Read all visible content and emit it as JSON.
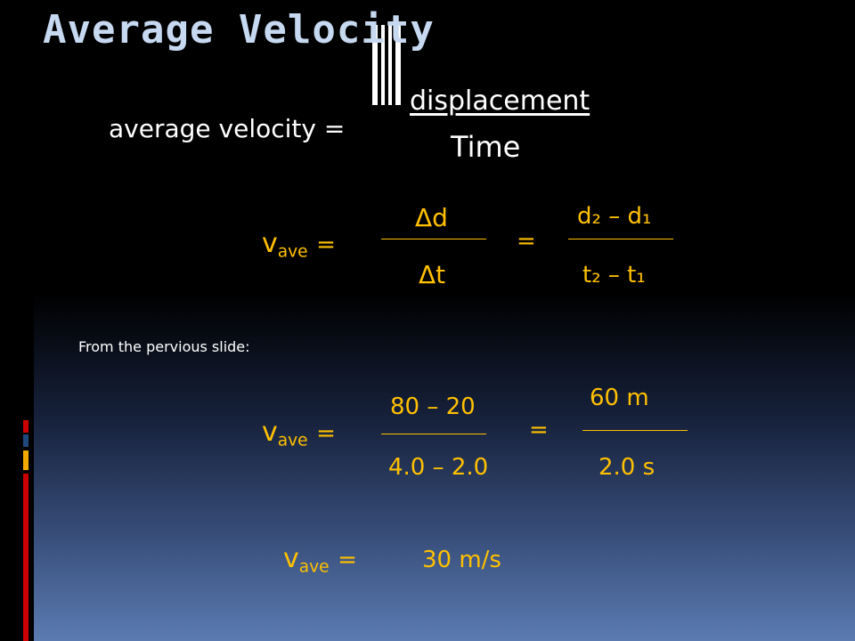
{
  "title": "Average Velocity",
  "definition": {
    "lhs": "average velocity =",
    "numerator": "displacement",
    "denominator": "Time"
  },
  "formula": {
    "v": "v",
    "sub": "ave",
    "eq": "=",
    "num1": "Δd",
    "den1": "Δt",
    "eq2": "=",
    "num2": "d₂ – d₁",
    "den2": "t₂ – t₁"
  },
  "note": "From the pervious slide:",
  "example": {
    "v": "v",
    "sub": "ave",
    "eq": "=",
    "num1": "80 – 20",
    "den1": "4.0 – 2.0",
    "eq2": "=",
    "num2": "60 m",
    "den2": "2.0 s"
  },
  "result": {
    "v": "v",
    "sub": "ave",
    "eq": "=",
    "value": "30 m/s"
  },
  "colors": {
    "accent": "#ffc000",
    "title": "#c6d9f1",
    "decoration": [
      "#f2a900",
      "#ffffff",
      "#1f497d"
    ]
  }
}
